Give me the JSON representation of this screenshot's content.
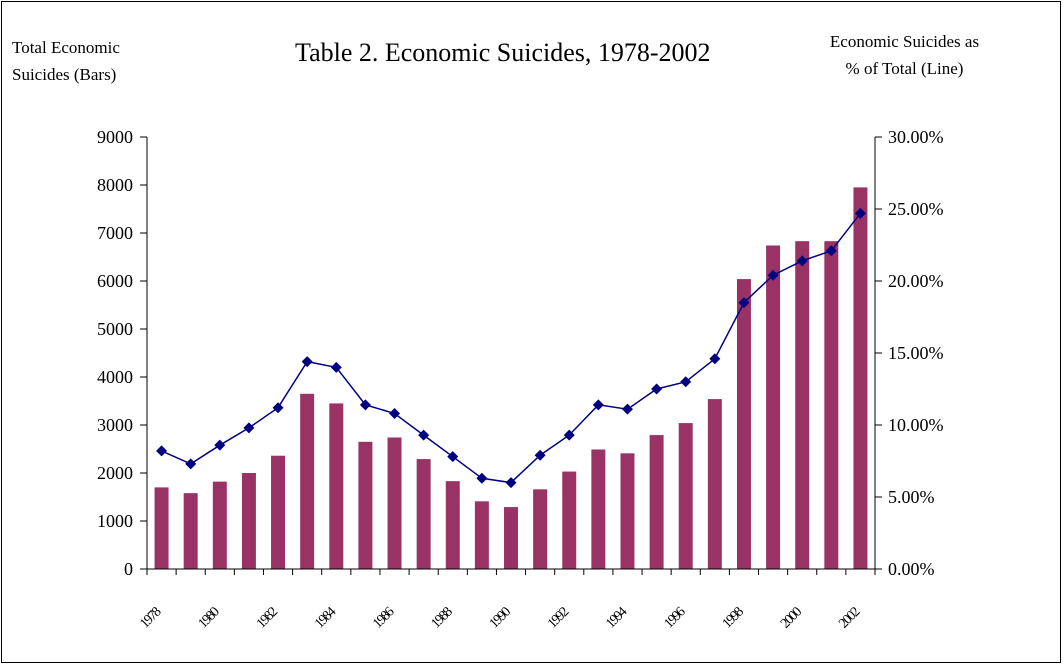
{
  "chart_data": {
    "type": "bar+line",
    "title": "Table 2.  Economic Suicides, 1978-2002",
    "left_axis_label": [
      "Total Economic",
      "Suicides (Bars)"
    ],
    "right_axis_label": [
      "Economic Suicides as",
      "% of Total (Line)"
    ],
    "x": [
      1978,
      1979,
      1980,
      1981,
      1982,
      1983,
      1984,
      1985,
      1986,
      1987,
      1988,
      1989,
      1990,
      1991,
      1992,
      1993,
      1994,
      1995,
      1996,
      1997,
      1998,
      1999,
      2000,
      2001,
      2002
    ],
    "x_tick_labels": [
      "1978",
      "1980",
      "1982",
      "1984",
      "1986",
      "1988",
      "1990",
      "1992",
      "1994",
      "1996",
      "1998",
      "2000",
      "2002"
    ],
    "bars": {
      "values": [
        1700,
        1580,
        1820,
        2000,
        2360,
        3650,
        3450,
        2650,
        2740,
        2290,
        1830,
        1410,
        1290,
        1660,
        2030,
        2490,
        2410,
        2790,
        3040,
        3540,
        6040,
        6740,
        6830,
        6830,
        7950
      ],
      "color": "#993366"
    },
    "line": {
      "values": [
        8.2,
        7.3,
        8.6,
        9.8,
        11.2,
        14.4,
        14.0,
        11.4,
        10.8,
        9.3,
        7.8,
        6.3,
        6.0,
        7.9,
        9.3,
        11.4,
        11.1,
        12.5,
        13.0,
        14.6,
        18.5,
        20.4,
        21.4,
        22.1,
        24.7
      ],
      "color": "#000080"
    },
    "left_axis": {
      "ylim": [
        0,
        9000
      ],
      "ticks": [
        "0",
        "1000",
        "2000",
        "3000",
        "4000",
        "5000",
        "6000",
        "7000",
        "8000",
        "9000"
      ]
    },
    "right_axis": {
      "ylim": [
        0,
        30
      ],
      "ticks": [
        "0.00%",
        "5.00%",
        "10.00%",
        "15.00%",
        "20.00%",
        "25.00%",
        "30.00%"
      ]
    }
  }
}
